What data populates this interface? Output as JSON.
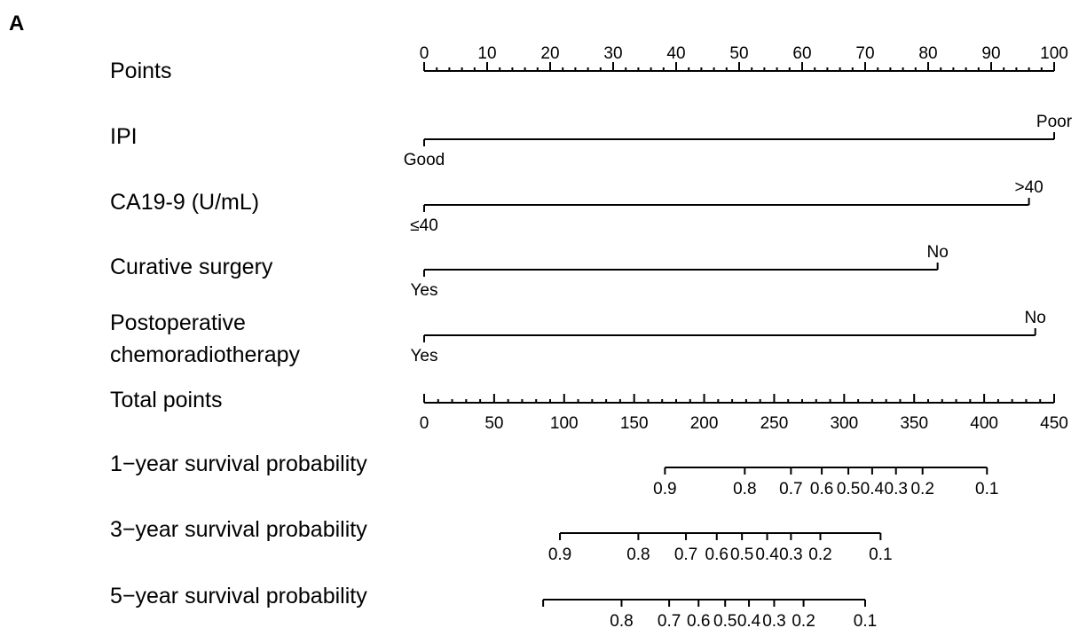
{
  "panel_label": "A",
  "chart_data": {
    "type": "nomogram",
    "points_axis": {
      "label": "Points",
      "range": [
        0,
        100
      ],
      "major_ticks": [
        0,
        10,
        20,
        30,
        40,
        50,
        60,
        70,
        80,
        90,
        100
      ],
      "minor_step": 2
    },
    "predictors": [
      {
        "label": "IPI",
        "levels": [
          {
            "name": "Good",
            "points": 0
          },
          {
            "name": "Poor",
            "points": 100
          }
        ]
      },
      {
        "label": "CA19-9 (U/mL)",
        "levels": [
          {
            "name": "≤40",
            "points": 0
          },
          {
            "name": ">40",
            "points": 96
          }
        ]
      },
      {
        "label": "Curative surgery",
        "levels": [
          {
            "name": "Yes",
            "points": 0
          },
          {
            "name": "No",
            "points": 81.5
          }
        ]
      },
      {
        "label": "Postoperative chemoradiotherapy",
        "label_lines": [
          "Postoperative",
          "chemoradiotherapy"
        ],
        "levels": [
          {
            "name": "Yes",
            "points": 0
          },
          {
            "name": "No",
            "points": 97
          }
        ]
      }
    ],
    "total_points_axis": {
      "label": "Total points",
      "range": [
        0,
        450
      ],
      "major_ticks": [
        0,
        50,
        100,
        150,
        200,
        250,
        300,
        350,
        400,
        450
      ],
      "minor_step": 10
    },
    "outcomes": [
      {
        "label": "1−year survival probability",
        "ticks": [
          {
            "prob": "0.9",
            "total": 172
          },
          {
            "prob": "0.8",
            "total": 229
          },
          {
            "prob": "0.7",
            "total": 262
          },
          {
            "prob": "0.6",
            "total": 284
          },
          {
            "prob": "0.5",
            "total": 303
          },
          {
            "prob": "0.4",
            "total": 320
          },
          {
            "prob": "0.3",
            "total": 337
          },
          {
            "prob": "0.2",
            "total": 356
          },
          {
            "prob": "0.1",
            "total": 402
          }
        ]
      },
      {
        "label": "3−year survival probability",
        "ticks": [
          {
            "prob": "0.9",
            "total": 97
          },
          {
            "prob": "0.8",
            "total": 153
          },
          {
            "prob": "0.7",
            "total": 187
          },
          {
            "prob": "0.6",
            "total": 209
          },
          {
            "prob": "0.5",
            "total": 227
          },
          {
            "prob": "0.4",
            "total": 245
          },
          {
            "prob": "0.3",
            "total": 262
          },
          {
            "prob": "0.2",
            "total": 283
          },
          {
            "prob": "0.1",
            "total": 326
          }
        ]
      },
      {
        "label": "5−year survival probability",
        "line_start_total": 85,
        "ticks": [
          {
            "prob": "0.8",
            "total": 141
          },
          {
            "prob": "0.7",
            "total": 175
          },
          {
            "prob": "0.6",
            "total": 196
          },
          {
            "prob": "0.5",
            "total": 215
          },
          {
            "prob": "0.4",
            "total": 232
          },
          {
            "prob": "0.3",
            "total": 250
          },
          {
            "prob": "0.2",
            "total": 271
          },
          {
            "prob": "0.1",
            "total": 315
          }
        ]
      }
    ]
  }
}
